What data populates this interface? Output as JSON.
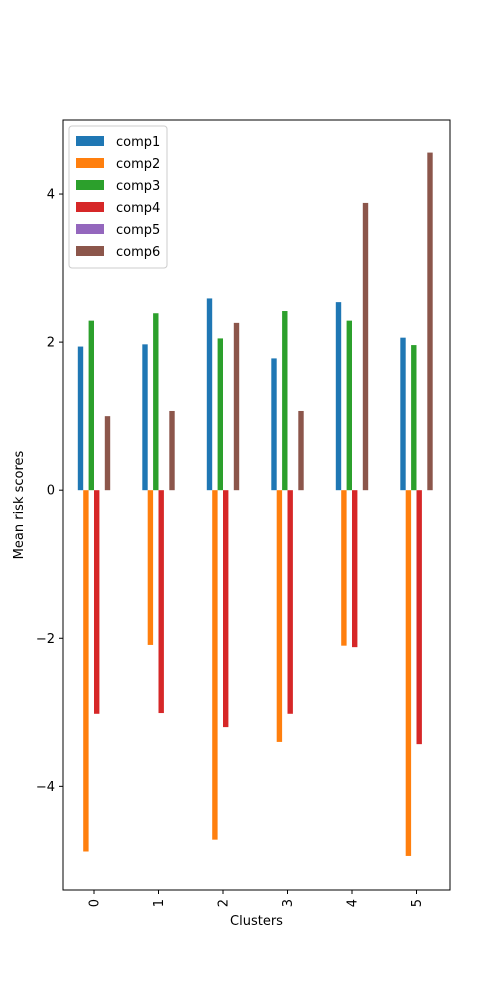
{
  "chart_data": {
    "type": "bar",
    "title": "",
    "xlabel": "Clusters",
    "ylabel": "Mean risk scores",
    "categories": [
      "0",
      "1",
      "2",
      "3",
      "4",
      "5"
    ],
    "ylim": [
      -5.4,
      5.0
    ],
    "yticks": [
      -4,
      -2,
      0,
      2,
      4
    ],
    "yticklabels": [
      "−4",
      "−2",
      "0",
      "2",
      "4"
    ],
    "grid": false,
    "legend_position": "top-left",
    "series": [
      {
        "name": "comp1",
        "color": "#1f77b4",
        "values": [
          1.94,
          1.97,
          2.59,
          1.78,
          2.54,
          2.06
        ]
      },
      {
        "name": "comp2",
        "color": "#ff7f0e",
        "values": [
          -4.88,
          -2.09,
          -4.72,
          -3.4,
          -2.1,
          -4.94
        ]
      },
      {
        "name": "comp3",
        "color": "#2ca02c",
        "values": [
          2.29,
          2.39,
          2.05,
          2.42,
          2.29,
          1.96
        ]
      },
      {
        "name": "comp4",
        "color": "#d62728",
        "values": [
          -3.02,
          -3.01,
          -3.2,
          -3.02,
          -2.12,
          -3.43
        ]
      },
      {
        "name": "comp5",
        "color": "#9467bd",
        "values": [
          0,
          0,
          0,
          0,
          0,
          0
        ]
      },
      {
        "name": "comp6",
        "color": "#8c564b",
        "values": [
          1.0,
          1.07,
          2.26,
          1.07,
          3.88,
          4.56
        ]
      }
    ]
  }
}
